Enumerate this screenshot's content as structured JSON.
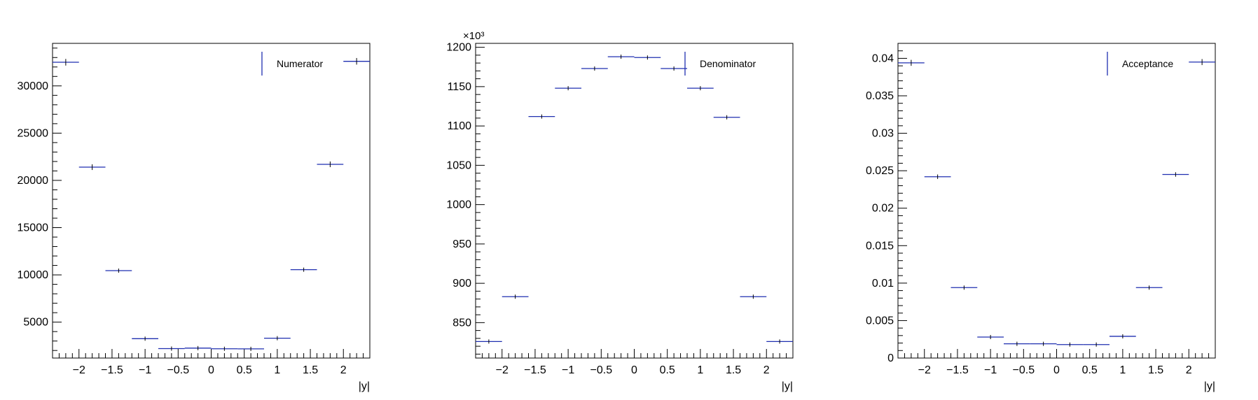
{
  "chart_data": [
    {
      "type": "scatter",
      "xlabel": "|y|",
      "ylabel": "",
      "xlim": [
        -2.4,
        2.4
      ],
      "ylim": [
        1200,
        34500
      ],
      "y_ticks": [
        5000,
        10000,
        15000,
        20000,
        25000,
        30000
      ],
      "y_tick_labels": [
        "5000",
        "10000",
        "15000",
        "20000",
        "25000",
        "30000"
      ],
      "y_exponent_label": "",
      "x_ticks": [
        -2,
        -1.5,
        -1,
        -0.5,
        0,
        0.5,
        1,
        1.5,
        2
      ],
      "x_tick_labels": [
        "−2",
        "−1.5",
        "−1",
        "−0.5",
        "0",
        "0.5",
        "1",
        "1.5",
        "2"
      ],
      "legend": "Numerator",
      "legend_position": "top-right",
      "bins": [
        {
          "xlow": -2.4,
          "xhigh": -2.0,
          "y": 32500,
          "err": 350
        },
        {
          "xlow": -2.0,
          "xhigh": -1.6,
          "y": 21400,
          "err": 300
        },
        {
          "xlow": -1.6,
          "xhigh": -1.2,
          "y": 10450,
          "err": 200
        },
        {
          "xlow": -1.2,
          "xhigh": -0.8,
          "y": 3250,
          "err": 120
        },
        {
          "xlow": -0.8,
          "xhigh": -0.4,
          "y": 2200,
          "err": 100
        },
        {
          "xlow": -0.4,
          "xhigh": 0.0,
          "y": 2250,
          "err": 100
        },
        {
          "xlow": 0.0,
          "xhigh": 0.4,
          "y": 2180,
          "err": 100
        },
        {
          "xlow": 0.4,
          "xhigh": 0.8,
          "y": 2170,
          "err": 100
        },
        {
          "xlow": 0.8,
          "xhigh": 1.2,
          "y": 3300,
          "err": 120
        },
        {
          "xlow": 1.2,
          "xhigh": 1.6,
          "y": 10550,
          "err": 200
        },
        {
          "xlow": 1.6,
          "xhigh": 2.0,
          "y": 21700,
          "err": 300
        },
        {
          "xlow": 2.0,
          "xhigh": 2.4,
          "y": 32600,
          "err": 350
        }
      ]
    },
    {
      "type": "scatter",
      "xlabel": "|y|",
      "ylabel": "",
      "xlim": [
        -2.4,
        2.4
      ],
      "ylim": [
        805,
        1205
      ],
      "y_ticks": [
        850,
        900,
        950,
        1000,
        1050,
        1100,
        1150,
        1200
      ],
      "y_tick_labels": [
        "850",
        "900",
        "950",
        "1000",
        "1050",
        "1100",
        "1150",
        "1200"
      ],
      "y_exponent_label": "×10³",
      "x_ticks": [
        -2,
        -1.5,
        -1,
        -0.5,
        0,
        0.5,
        1,
        1.5,
        2
      ],
      "x_tick_labels": [
        "−2",
        "−1.5",
        "−1",
        "−0.5",
        "0",
        "0.5",
        "1",
        "1.5",
        "2"
      ],
      "legend": "Denominator",
      "legend_position": "top-right",
      "bins": [
        {
          "xlow": -2.4,
          "xhigh": -2.0,
          "y": 826,
          "err": 1.5
        },
        {
          "xlow": -2.0,
          "xhigh": -1.6,
          "y": 883,
          "err": 2.5
        },
        {
          "xlow": -1.6,
          "xhigh": -1.2,
          "y": 1112,
          "err": 2.5
        },
        {
          "xlow": -1.2,
          "xhigh": -0.8,
          "y": 1148,
          "err": 2.5
        },
        {
          "xlow": -0.8,
          "xhigh": -0.4,
          "y": 1173,
          "err": 2.5
        },
        {
          "xlow": -0.4,
          "xhigh": 0.0,
          "y": 1188,
          "err": 2.5
        },
        {
          "xlow": 0.0,
          "xhigh": 0.4,
          "y": 1187,
          "err": 2.5
        },
        {
          "xlow": 0.4,
          "xhigh": 0.8,
          "y": 1173,
          "err": 2.5
        },
        {
          "xlow": 0.8,
          "xhigh": 1.2,
          "y": 1148,
          "err": 2.5
        },
        {
          "xlow": 1.2,
          "xhigh": 1.6,
          "y": 1111,
          "err": 2.5
        },
        {
          "xlow": 1.6,
          "xhigh": 2.0,
          "y": 883,
          "err": 2.5
        },
        {
          "xlow": 2.0,
          "xhigh": 2.4,
          "y": 826,
          "err": 1.5
        }
      ]
    },
    {
      "type": "scatter",
      "xlabel": "|y|",
      "ylabel": "",
      "xlim": [
        -2.4,
        2.4
      ],
      "ylim": [
        0,
        0.042
      ],
      "y_ticks": [
        0,
        0.005,
        0.01,
        0.015,
        0.02,
        0.025,
        0.03,
        0.035,
        0.04
      ],
      "y_tick_labels": [
        "0",
        "0.005",
        "0.01",
        "0.015",
        "0.02",
        "0.025",
        "0.03",
        "0.035",
        "0.04"
      ],
      "y_exponent_label": "",
      "x_ticks": [
        -2,
        -1.5,
        -1,
        -0.5,
        0,
        0.5,
        1,
        1.5,
        2
      ],
      "x_tick_labels": [
        "−2",
        "−1.5",
        "−1",
        "−0.5",
        "0",
        "0.5",
        "1",
        "1.5",
        "2"
      ],
      "legend": "Acceptance",
      "legend_position": "top-right",
      "bins": [
        {
          "xlow": -2.4,
          "xhigh": -2.0,
          "y": 0.0394,
          "err": 0.0004
        },
        {
          "xlow": -2.0,
          "xhigh": -1.6,
          "y": 0.0242,
          "err": 0.0003
        },
        {
          "xlow": -1.6,
          "xhigh": -1.2,
          "y": 0.0094,
          "err": 0.0002
        },
        {
          "xlow": -1.2,
          "xhigh": -0.8,
          "y": 0.0028,
          "err": 0.0001
        },
        {
          "xlow": -0.8,
          "xhigh": -0.4,
          "y": 0.0019,
          "err": 0.0001
        },
        {
          "xlow": -0.4,
          "xhigh": 0.0,
          "y": 0.0019,
          "err": 0.0001
        },
        {
          "xlow": 0.0,
          "xhigh": 0.4,
          "y": 0.0018,
          "err": 0.0001
        },
        {
          "xlow": 0.4,
          "xhigh": 0.8,
          "y": 0.0018,
          "err": 0.0001
        },
        {
          "xlow": 0.8,
          "xhigh": 1.2,
          "y": 0.0029,
          "err": 0.0001
        },
        {
          "xlow": 1.2,
          "xhigh": 1.6,
          "y": 0.0094,
          "err": 0.0002
        },
        {
          "xlow": 1.6,
          "xhigh": 2.0,
          "y": 0.0245,
          "err": 0.0003
        },
        {
          "xlow": 2.0,
          "xhigh": 2.4,
          "y": 0.0395,
          "err": 0.0004
        }
      ]
    }
  ]
}
